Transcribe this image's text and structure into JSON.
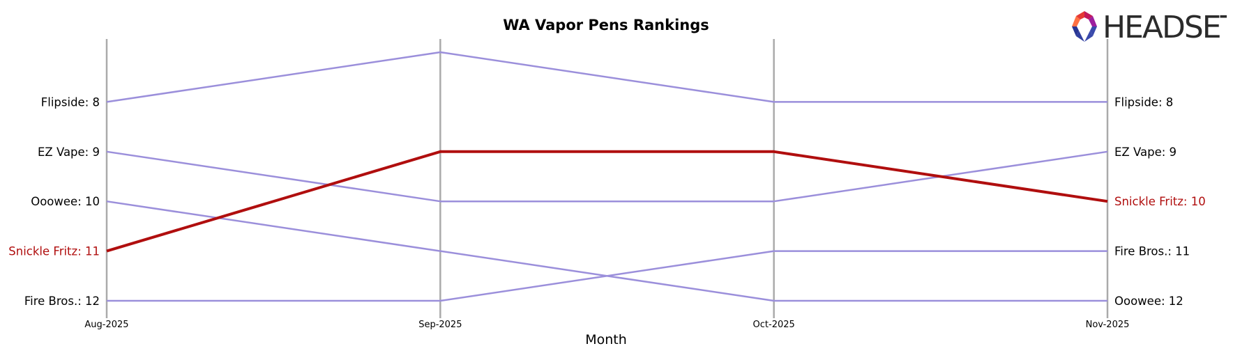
{
  "chart_data": {
    "type": "line",
    "title": "WA Vapor Pens Rankings",
    "xlabel": "Month",
    "ylabel": "",
    "x": [
      "Aug-2025",
      "Sep-2025",
      "Oct-2025",
      "Nov-2025"
    ],
    "ylim": [
      7,
      12
    ],
    "y_inverted": true,
    "grid": false,
    "series": [
      {
        "name": "Flipside",
        "values": [
          8,
          7,
          8,
          8
        ],
        "color": "#9b8fdb",
        "highlight": false
      },
      {
        "name": "EZ Vape",
        "values": [
          9,
          10,
          10,
          9
        ],
        "color": "#9b8fdb",
        "highlight": false
      },
      {
        "name": "Ooowee",
        "values": [
          10,
          11,
          12,
          12
        ],
        "color": "#9b8fdb",
        "highlight": false
      },
      {
        "name": "Snickle Fritz",
        "values": [
          11,
          9,
          9,
          10
        ],
        "color": "#b00e0e",
        "highlight": true
      },
      {
        "name": "Fire Bros.",
        "values": [
          12,
          12,
          11,
          11
        ],
        "color": "#9b8fdb",
        "highlight": false
      }
    ],
    "left_labels": [
      {
        "text": "Flipside: 8",
        "rank": 8,
        "highlight": false
      },
      {
        "text": "EZ Vape: 9",
        "rank": 9,
        "highlight": false
      },
      {
        "text": "Ooowee: 10",
        "rank": 10,
        "highlight": false
      },
      {
        "text": "Snickle Fritz: 11",
        "rank": 11,
        "highlight": true
      },
      {
        "text": "Fire Bros.: 12",
        "rank": 12,
        "highlight": false
      }
    ],
    "right_labels": [
      {
        "text": "Flipside: 8",
        "rank": 8,
        "highlight": false
      },
      {
        "text": "EZ Vape: 9",
        "rank": 9,
        "highlight": false
      },
      {
        "text": "Snickle Fritz: 10",
        "rank": 10,
        "highlight": true
      },
      {
        "text": "Fire Bros.: 11",
        "rank": 11,
        "highlight": false
      },
      {
        "text": "Ooowee: 12",
        "rank": 12,
        "highlight": false
      }
    ]
  },
  "colors": {
    "highlight": "#b00e0e",
    "series": "#9b8fdb",
    "vertical_line": "#aaaaaa",
    "label_default": "#000000"
  },
  "logo": {
    "text": "HEADSET",
    "icon": "headset-hexagon-logo"
  }
}
